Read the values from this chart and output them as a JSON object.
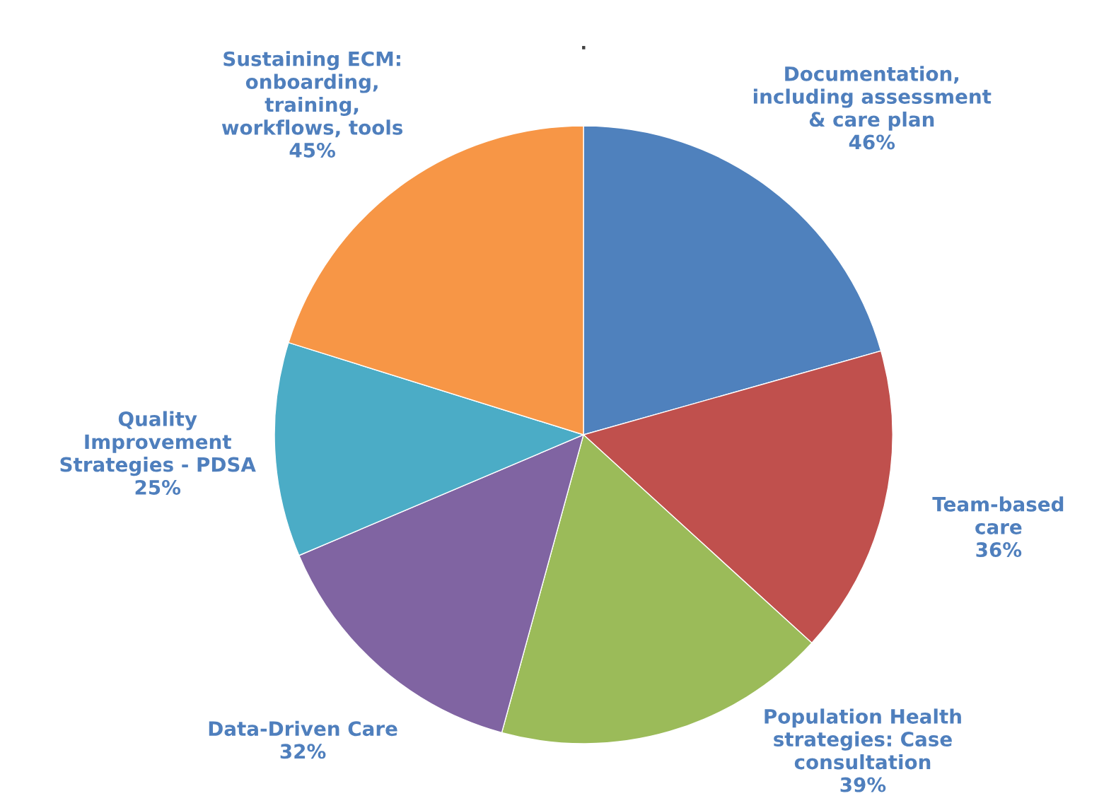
{
  "chart_data": {
    "type": "pie",
    "title": ".",
    "categories": [
      "Documentation,\nincluding assessment\n& care plan",
      "Team-based\ncare",
      "Population Health\nstrategies: Case\nconsultation",
      "Data-Driven Care",
      "Quality\nImprovement\nStrategies - PDSA",
      "Sustaining ECM:\nonboarding,\ntraining,\nworkflows, tools"
    ],
    "values": [
      46,
      36,
      39,
      32,
      25,
      45
    ],
    "value_labels": [
      "46%",
      "36%",
      "39%",
      "32%",
      "25%",
      "45%"
    ],
    "colors": [
      "#4f81bd",
      "#c0504d",
      "#9bbb59",
      "#8064a2",
      "#4bacc6",
      "#f79646"
    ]
  }
}
